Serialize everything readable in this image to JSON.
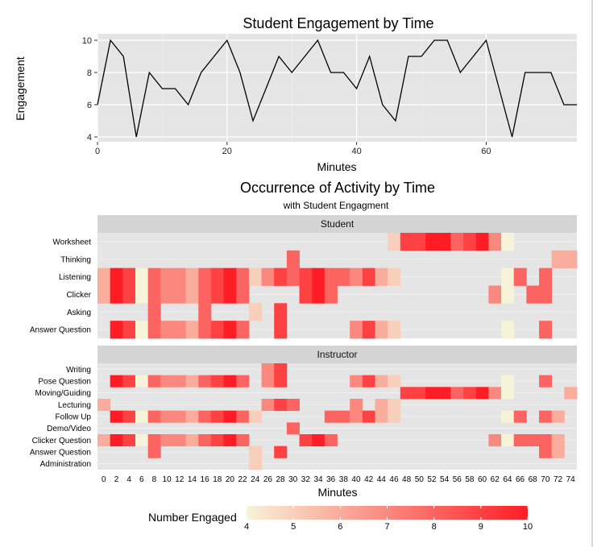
{
  "chart_data": [
    {
      "type": "line",
      "title": "Student Engagement by Time",
      "xlabel": "Minutes",
      "ylabel": "Engagement",
      "xlim": [
        0,
        74
      ],
      "ylim": [
        3.7,
        10.4
      ],
      "xticks": [
        0,
        20,
        40,
        60
      ],
      "yticks": [
        4,
        6,
        8,
        10
      ],
      "grid": true,
      "x": [
        0,
        2,
        4,
        6,
        8,
        10,
        12,
        14,
        16,
        18,
        20,
        22,
        24,
        26,
        28,
        30,
        32,
        34,
        36,
        38,
        40,
        42,
        44,
        46,
        48,
        50,
        52,
        54,
        56,
        58,
        60,
        62,
        64,
        66,
        68,
        70,
        72,
        74
      ],
      "y": [
        6,
        10,
        9,
        4,
        8,
        7,
        7,
        6,
        8,
        9,
        10,
        8,
        5,
        7,
        9,
        8,
        9,
        10,
        8,
        8,
        7,
        9,
        6,
        5,
        9,
        9,
        10,
        10,
        8,
        9,
        10,
        7,
        4,
        8,
        8,
        8,
        6,
        6
      ]
    },
    {
      "type": "heatmap",
      "title": "Occurrence of Activity by Time",
      "subtitle": "with Student Engagment",
      "xlabel": "Minutes",
      "x": [
        0,
        2,
        4,
        6,
        8,
        10,
        12,
        14,
        16,
        18,
        20,
        22,
        24,
        26,
        28,
        30,
        32,
        34,
        36,
        38,
        40,
        42,
        44,
        46,
        48,
        50,
        52,
        54,
        56,
        58,
        60,
        62,
        64,
        66,
        68,
        70,
        72,
        74
      ],
      "legend_title": "Number Engaged",
      "legend_ticks": [
        4,
        5,
        6,
        7,
        8,
        9,
        10
      ],
      "color_low": "#f7f3d9",
      "color_high": "#ff1d25",
      "panel_bg": "#e5e5e5",
      "strip_bg": "#d4d4d4",
      "panels": [
        {
          "strip": "Student",
          "rows": [
            {
              "label": "Worksheet",
              "cells": [
                0,
                0,
                0,
                0,
                0,
                0,
                0,
                0,
                0,
                0,
                0,
                0,
                0,
                0,
                0,
                0,
                0,
                0,
                0,
                0,
                0,
                0,
                0,
                1,
                1,
                1,
                1,
                1,
                1,
                1,
                1,
                1,
                1,
                0,
                0,
                0,
                0,
                0
              ]
            },
            {
              "label": "Thinking",
              "cells": [
                0,
                0,
                0,
                0,
                0,
                0,
                0,
                0,
                0,
                0,
                0,
                0,
                0,
                0,
                0,
                1,
                0,
                0,
                0,
                0,
                0,
                0,
                0,
                0,
                0,
                0,
                0,
                0,
                0,
                0,
                0,
                0,
                0,
                0,
                0,
                0,
                1,
                1
              ]
            },
            {
              "label": "Listening",
              "cells": [
                1,
                1,
                1,
                1,
                1,
                1,
                1,
                1,
                1,
                1,
                1,
                1,
                1,
                1,
                1,
                1,
                1,
                1,
                1,
                1,
                1,
                1,
                1,
                1,
                0,
                0,
                0,
                0,
                0,
                0,
                0,
                0,
                1,
                1,
                0,
                1,
                0,
                0
              ]
            },
            {
              "label": "Clicker",
              "cells": [
                1,
                1,
                1,
                1,
                1,
                1,
                1,
                1,
                1,
                1,
                1,
                1,
                0,
                0,
                0,
                0,
                1,
                1,
                1,
                0,
                0,
                0,
                0,
                0,
                0,
                0,
                0,
                0,
                0,
                0,
                0,
                1,
                1,
                0,
                1,
                1,
                0,
                0
              ]
            },
            {
              "label": "Asking",
              "cells": [
                0,
                0,
                0,
                0,
                1,
                0,
                0,
                0,
                1,
                0,
                0,
                0,
                1,
                0,
                1,
                0,
                0,
                0,
                0,
                0,
                0,
                0,
                0,
                0,
                0,
                0,
                0,
                0,
                0,
                0,
                0,
                0,
                0,
                0,
                0,
                0,
                0,
                0
              ]
            },
            {
              "label": "Answer Question",
              "cells": [
                0,
                1,
                1,
                1,
                1,
                1,
                1,
                1,
                1,
                1,
                1,
                1,
                0,
                0,
                1,
                0,
                0,
                0,
                0,
                0,
                1,
                1,
                1,
                1,
                0,
                0,
                0,
                0,
                0,
                0,
                0,
                0,
                1,
                0,
                0,
                1,
                0,
                0
              ]
            }
          ]
        },
        {
          "strip": "Instructor",
          "rows": [
            {
              "label": "Writing",
              "cells": [
                0,
                0,
                0,
                0,
                0,
                0,
                0,
                0,
                0,
                0,
                0,
                0,
                0,
                1,
                1,
                0,
                0,
                0,
                0,
                0,
                0,
                0,
                0,
                0,
                0,
                0,
                0,
                0,
                0,
                0,
                0,
                0,
                0,
                0,
                0,
                0,
                0,
                0
              ]
            },
            {
              "label": "Pose Question",
              "cells": [
                0,
                1,
                1,
                1,
                1,
                1,
                1,
                1,
                1,
                1,
                1,
                1,
                0,
                1,
                1,
                0,
                0,
                0,
                0,
                0,
                1,
                1,
                1,
                1,
                0,
                0,
                0,
                0,
                0,
                0,
                0,
                0,
                1,
                0,
                0,
                1,
                0,
                0
              ]
            },
            {
              "label": "Moving/Guiding",
              "cells": [
                0,
                0,
                0,
                0,
                0,
                0,
                0,
                0,
                0,
                0,
                0,
                0,
                0,
                0,
                0,
                0,
                0,
                0,
                0,
                0,
                0,
                0,
                0,
                0,
                1,
                1,
                1,
                1,
                1,
                1,
                1,
                1,
                1,
                0,
                0,
                0,
                0,
                1
              ]
            },
            {
              "label": "Lecturing",
              "cells": [
                1,
                0,
                0,
                0,
                0,
                0,
                0,
                0,
                0,
                0,
                0,
                0,
                0,
                1,
                1,
                1,
                0,
                0,
                0,
                0,
                1,
                0,
                1,
                1,
                0,
                0,
                0,
                0,
                0,
                0,
                0,
                0,
                0,
                0,
                0,
                0,
                0,
                0
              ]
            },
            {
              "label": "Follow Up",
              "cells": [
                0,
                1,
                1,
                1,
                1,
                1,
                1,
                1,
                1,
                1,
                1,
                1,
                1,
                0,
                0,
                0,
                0,
                0,
                1,
                1,
                1,
                1,
                1,
                1,
                0,
                0,
                0,
                0,
                0,
                0,
                0,
                0,
                1,
                1,
                0,
                1,
                1,
                0
              ]
            },
            {
              "label": "Demo/Video",
              "cells": [
                0,
                0,
                0,
                0,
                0,
                0,
                0,
                0,
                0,
                0,
                0,
                0,
                0,
                0,
                0,
                1,
                0,
                0,
                0,
                0,
                0,
                0,
                0,
                0,
                0,
                0,
                0,
                0,
                0,
                0,
                0,
                0,
                0,
                0,
                0,
                0,
                0,
                0
              ]
            },
            {
              "label": "Clicker Question",
              "cells": [
                1,
                1,
                1,
                1,
                1,
                1,
                1,
                1,
                1,
                1,
                1,
                1,
                0,
                0,
                0,
                0,
                1,
                1,
                1,
                0,
                0,
                0,
                0,
                0,
                0,
                0,
                0,
                0,
                0,
                0,
                0,
                1,
                1,
                1,
                1,
                1,
                1,
                0
              ]
            },
            {
              "label": "Answer Question",
              "cells": [
                0,
                0,
                0,
                0,
                1,
                0,
                0,
                0,
                0,
                0,
                0,
                0,
                1,
                0,
                1,
                0,
                0,
                0,
                0,
                0,
                0,
                0,
                0,
                0,
                0,
                0,
                0,
                0,
                0,
                0,
                0,
                0,
                0,
                0,
                0,
                1,
                1,
                0
              ]
            },
            {
              "label": "Administration",
              "cells": [
                0,
                0,
                0,
                0,
                0,
                0,
                0,
                0,
                0,
                0,
                0,
                0,
                1,
                0,
                0,
                0,
                0,
                0,
                0,
                0,
                0,
                0,
                0,
                0,
                0,
                0,
                0,
                0,
                0,
                0,
                0,
                0,
                0,
                0,
                0,
                0,
                0,
                0
              ]
            }
          ]
        }
      ]
    }
  ]
}
